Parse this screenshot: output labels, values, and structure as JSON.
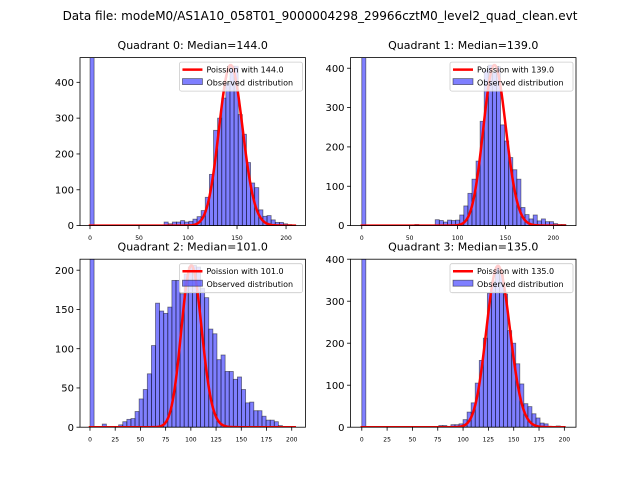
{
  "figure": {
    "suptitle": "Data file: modeM0/AS1A10_058T01_9000004298_29966cztM0_level2_quad_clean.evt"
  },
  "chart_data": [
    {
      "type": "bar",
      "title": "Quadrant 0: Median=144.0",
      "xlabel": "",
      "ylabel": "",
      "xlim": [
        -10.2,
        219.8
      ],
      "ylim": [
        0,
        469
      ],
      "xticks": [
        0,
        50,
        100,
        150,
        200
      ],
      "yticks": [
        0,
        100,
        200,
        300,
        400
      ],
      "grid": false,
      "legend": {
        "position": "top-right",
        "entries": [
          "Poission with 144.0",
          "Observed distribution"
        ]
      },
      "histogram": {
        "label": "Observed distribution",
        "color": "#0000ff",
        "alpha": 0.5,
        "bin_start": 0,
        "bin_width": 4.2,
        "first_bin_clipped": true,
        "counts": [
          1000,
          0,
          0,
          0,
          0,
          0,
          0,
          0,
          0,
          0,
          0,
          0,
          0,
          0,
          0,
          0,
          0,
          0,
          10,
          5,
          10,
          10,
          14,
          10,
          12,
          18,
          25,
          42,
          79,
          143,
          266,
          300,
          356,
          398,
          445,
          445,
          310,
          255,
          176,
          119,
          106,
          44,
          26,
          28,
          16,
          9,
          9,
          5,
          3,
          0
        ]
      },
      "poisson": {
        "label": "Poission with 144.0",
        "color": "#ff0000",
        "lambda": 144.0,
        "peak": 448,
        "x_range": [
          0,
          209
        ]
      }
    },
    {
      "type": "bar",
      "title": "Quadrant 1: Median=139.0",
      "xlabel": "",
      "ylabel": "",
      "xlim": [
        -11.7,
        223.6
      ],
      "ylim": [
        0,
        427
      ],
      "xticks": [
        0,
        50,
        100,
        150,
        200
      ],
      "yticks": [
        0,
        100,
        200,
        300,
        400
      ],
      "grid": false,
      "legend": {
        "position": "top-right",
        "entries": [
          "Poission with 139.0",
          "Observed distribution"
        ]
      },
      "histogram": {
        "label": "Observed distribution",
        "color": "#0000ff",
        "alpha": 0.5,
        "bin_start": 0,
        "bin_width": 4.26,
        "first_bin_clipped": true,
        "counts": [
          1000,
          0,
          0,
          0,
          0,
          0,
          0,
          0,
          0,
          0,
          0,
          0,
          0,
          3,
          0,
          0,
          0,
          0,
          15,
          13,
          9,
          14,
          13,
          14,
          27,
          50,
          82,
          118,
          164,
          265,
          395,
          408,
          390,
          404,
          256,
          215,
          173,
          142,
          118,
          46,
          28,
          17,
          27,
          12,
          17,
          10,
          10,
          5,
          3,
          3
        ]
      },
      "poisson": {
        "label": "Poission with 139.0",
        "color": "#ff0000",
        "lambda": 139.0,
        "peak": 408,
        "x_range": [
          0,
          212
        ]
      }
    },
    {
      "type": "bar",
      "title": "Quadrant 2: Median=101.0",
      "xlabel": "",
      "ylabel": "",
      "xlim": [
        -9.9,
        213.6
      ],
      "ylim": [
        0,
        214
      ],
      "xticks": [
        0,
        25,
        50,
        75,
        100,
        125,
        150,
        175,
        200
      ],
      "yticks": [
        0,
        50,
        100,
        150,
        200
      ],
      "grid": false,
      "legend": {
        "position": "top-right",
        "entries": [
          "Poission with 101.0",
          "Observed distribution"
        ]
      },
      "histogram": {
        "label": "Observed distribution",
        "color": "#0000ff",
        "alpha": 0.5,
        "bin_start": 0,
        "bin_width": 4.06,
        "first_bin_clipped": true,
        "counts": [
          1000,
          0,
          0,
          4,
          0,
          0,
          0,
          3,
          7,
          10,
          11,
          20,
          36,
          48,
          68,
          104,
          158,
          148,
          145,
          153,
          187,
          187,
          170,
          195,
          204,
          206,
          204,
          177,
          165,
          125,
          119,
          86,
          92,
          71,
          71,
          61,
          64,
          48,
          31,
          32,
          21,
          21,
          14,
          9,
          9,
          7,
          2,
          0,
          0,
          0
        ]
      },
      "poisson": {
        "label": "Poission with 101.0",
        "color": "#ff0000",
        "lambda": 101.0,
        "peak": 206,
        "x_range": [
          0,
          203
        ]
      }
    },
    {
      "type": "bar",
      "title": "Quadrant 3: Median=135.0",
      "xlabel": "",
      "ylabel": "",
      "xlim": [
        -11.1,
        211.5
      ],
      "ylim": [
        0,
        400
      ],
      "xticks": [
        0,
        25,
        50,
        75,
        100,
        125,
        150,
        175,
        200
      ],
      "yticks": [
        0,
        100,
        200,
        300,
        400
      ],
      "grid": false,
      "legend": {
        "position": "top-right",
        "entries": [
          "Poission with 135.0",
          "Observed distribution"
        ]
      },
      "histogram": {
        "label": "Observed distribution",
        "color": "#0000ff",
        "alpha": 0.5,
        "bin_start": 0,
        "bin_width": 4.0,
        "first_bin_clipped": true,
        "counts": [
          1000,
          0,
          0,
          0,
          0,
          0,
          0,
          0,
          0,
          0,
          0,
          0,
          0,
          0,
          0,
          0,
          0,
          0,
          0,
          4,
          4,
          2,
          6,
          6,
          8,
          18,
          36,
          58,
          105,
          159,
          212,
          319,
          348,
          381,
          365,
          317,
          230,
          200,
          151,
          103,
          56,
          49,
          32,
          22,
          10,
          8,
          2,
          2,
          3,
          0
        ]
      },
      "poisson": {
        "label": "Poission with 135.0",
        "color": "#ff0000",
        "lambda": 135.0,
        "peak": 384,
        "x_range": [
          0,
          200
        ]
      }
    }
  ]
}
